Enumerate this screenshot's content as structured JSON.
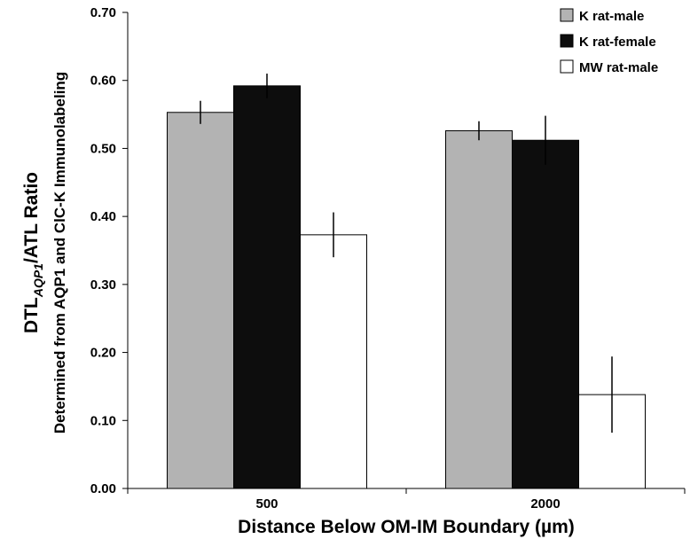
{
  "chart_data": {
    "type": "bar",
    "xlabel": "Distance Below OM-IM Boundary (µm)",
    "ylabel": {
      "line1_main": "DTL",
      "line1_sub": "AQP1",
      "line1_rest": "/ATL Ratio",
      "line2": "Determined from AQP1 and ClC-K Immunolabeling"
    },
    "categories": [
      "500",
      "2000"
    ],
    "ylim": [
      0,
      0.7
    ],
    "yticks": [
      "0.00",
      "0.10",
      "0.20",
      "0.30",
      "0.40",
      "0.50",
      "0.60",
      "0.70"
    ],
    "series": [
      {
        "name": "K rat-male",
        "color": "#b3b3b3",
        "values": [
          0.553,
          0.526
        ],
        "errors": [
          0.017,
          0.014
        ]
      },
      {
        "name": "K rat-female",
        "color": "#0d0d0d",
        "values": [
          0.592,
          0.512
        ],
        "errors": [
          0.018,
          0.036
        ]
      },
      {
        "name": "MW rat-male",
        "color": "#ffffff",
        "values": [
          0.373,
          0.138
        ],
        "errors": [
          0.033,
          0.056
        ]
      }
    ],
    "legend": "top-right",
    "grid": false
  }
}
